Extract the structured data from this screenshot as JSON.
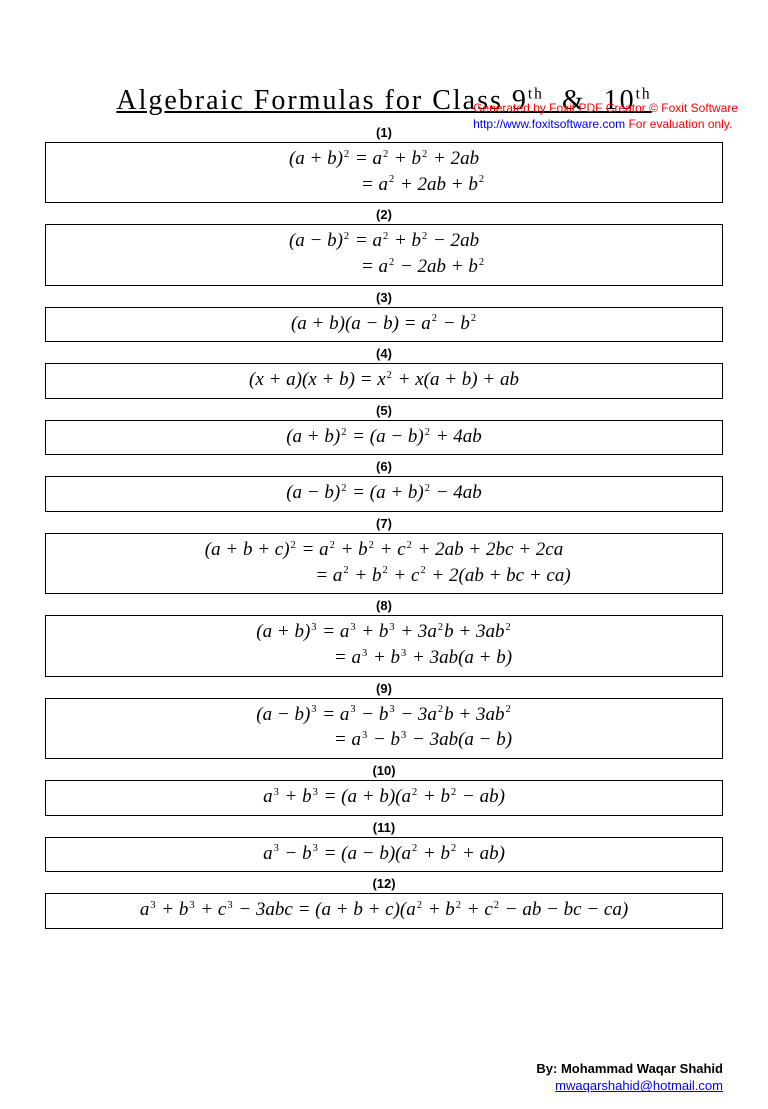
{
  "header": {
    "line1": "Generated by Foxit PDF Creator © Foxit Software",
    "line2a": "http://www.foxitsoftware.com",
    "line2b": "   For evaluation only."
  },
  "title_html": "Algebraic Formulas for Class 9<sup>th</sup> &nbsp;&amp;&nbsp; 10<sup>th</sup>",
  "formulas": [
    {
      "num": "(1)",
      "lines": [
        "(<i>a</i> + <i>b</i>)<sup>2</sup> = <i>a</i><sup>2</sup> + <i>b</i><sup>2</sup> + 2<i>ab</i>",
        "= <i>a</i><sup>2</sup> + 2<i>ab</i> + <i>b</i><sup>2</sup>"
      ],
      "indent2": "78px"
    },
    {
      "num": "(2)",
      "lines": [
        "(<i>a</i> − <i>b</i>)<sup>2</sup> = <i>a</i><sup>2</sup> + <i>b</i><sup>2</sup> − 2<i>ab</i>",
        "= <i>a</i><sup>2</sup> − 2<i>ab</i> + <i>b</i><sup>2</sup>"
      ],
      "indent2": "78px"
    },
    {
      "num": "(3)",
      "lines": [
        "(<i>a</i> + <i>b</i>)(<i>a</i> − <i>b</i>) = <i>a</i><sup>2</sup> − <i>b</i><sup>2</sup>"
      ]
    },
    {
      "num": "(4)",
      "lines": [
        "(<i>x</i> + <i>a</i>)(<i>x</i> + <i>b</i>) = <i>x</i><sup>2</sup> + <i>x</i>(<i>a</i> + <i>b</i>) + <i>ab</i>"
      ]
    },
    {
      "num": "(5)",
      "lines": [
        "(<i>a</i> + <i>b</i>)<sup>2</sup> = (<i>a</i> − <i>b</i>)<sup>2</sup> + 4<i>ab</i>"
      ]
    },
    {
      "num": "(6)",
      "lines": [
        "(<i>a</i> − <i>b</i>)<sup>2</sup> = (<i>a</i> + <i>b</i>)<sup>2</sup> − 4<i>ab</i>"
      ]
    },
    {
      "num": "(7)",
      "lines": [
        "(<i>a</i> + <i>b</i> + <i>c</i>)<sup>2</sup> = <i>a</i><sup>2</sup> + <i>b</i><sup>2</sup> + <i>c</i><sup>2</sup> + 2<i>ab</i> + 2<i>bc</i> + 2<i>ca</i>",
        "= <i>a</i><sup>2</sup> + <i>b</i><sup>2</sup> + <i>c</i><sup>2</sup> + 2(<i>ab</i> + <i>bc</i> + <i>ca</i>)"
      ],
      "indent2": "118px"
    },
    {
      "num": "(8)",
      "lines": [
        "(<i>a</i> + <i>b</i>)<sup>3</sup> = <i>a</i><sup>3</sup> + <i>b</i><sup>3</sup> + 3<i>a</i><sup>2</sup><i>b</i> + 3<i>ab</i><sup>2</sup>",
        "= <i>a</i><sup>3</sup> + <i>b</i><sup>3</sup> + 3<i>ab</i>(<i>a</i> + <i>b</i>)"
      ],
      "indent2": "78px"
    },
    {
      "num": "(9)",
      "lines": [
        "(<i>a</i> − <i>b</i>)<sup>3</sup> = <i>a</i><sup>3</sup> − <i>b</i><sup>3</sup> − 3<i>a</i><sup>2</sup><i>b</i> + 3<i>ab</i><sup>2</sup>",
        "= <i>a</i><sup>3</sup> − <i>b</i><sup>3</sup> − 3<i>ab</i>(<i>a</i> − <i>b</i>)"
      ],
      "indent2": "78px"
    },
    {
      "num": "(10)",
      "lines": [
        "<i>a</i><sup>3</sup> + <i>b</i><sup>3</sup> = (<i>a</i> + <i>b</i>)(<i>a</i><sup>2</sup> + <i>b</i><sup>2</sup> − <i>ab</i>)"
      ]
    },
    {
      "num": "(11)",
      "lines": [
        "<i>a</i><sup>3</sup> − <i>b</i><sup>3</sup> = (<i>a</i> − <i>b</i>)(<i>a</i><sup>2</sup> + <i>b</i><sup>2</sup> + <i>ab</i>)"
      ]
    },
    {
      "num": "(12)",
      "lines": [
        "<i>a</i><sup>3</sup> + <i>b</i><sup>3</sup> + <i>c</i><sup>3</sup> − 3<i>abc</i> = (<i>a</i> + <i>b</i> + <i>c</i>)(<i>a</i><sup>2</sup> + <i>b</i><sup>2</sup> + <i>c</i><sup>2</sup> − <i>ab</i> − <i>bc</i> − <i>ca</i>)"
      ]
    }
  ],
  "footer": {
    "byline": "By: Mohammad Waqar Shahid",
    "email": "mwaqarshahid@hotmail.com"
  },
  "colors": {
    "red": "#ff0000",
    "blue": "#0000ff",
    "border": "#000000",
    "background": "#ffffff"
  }
}
